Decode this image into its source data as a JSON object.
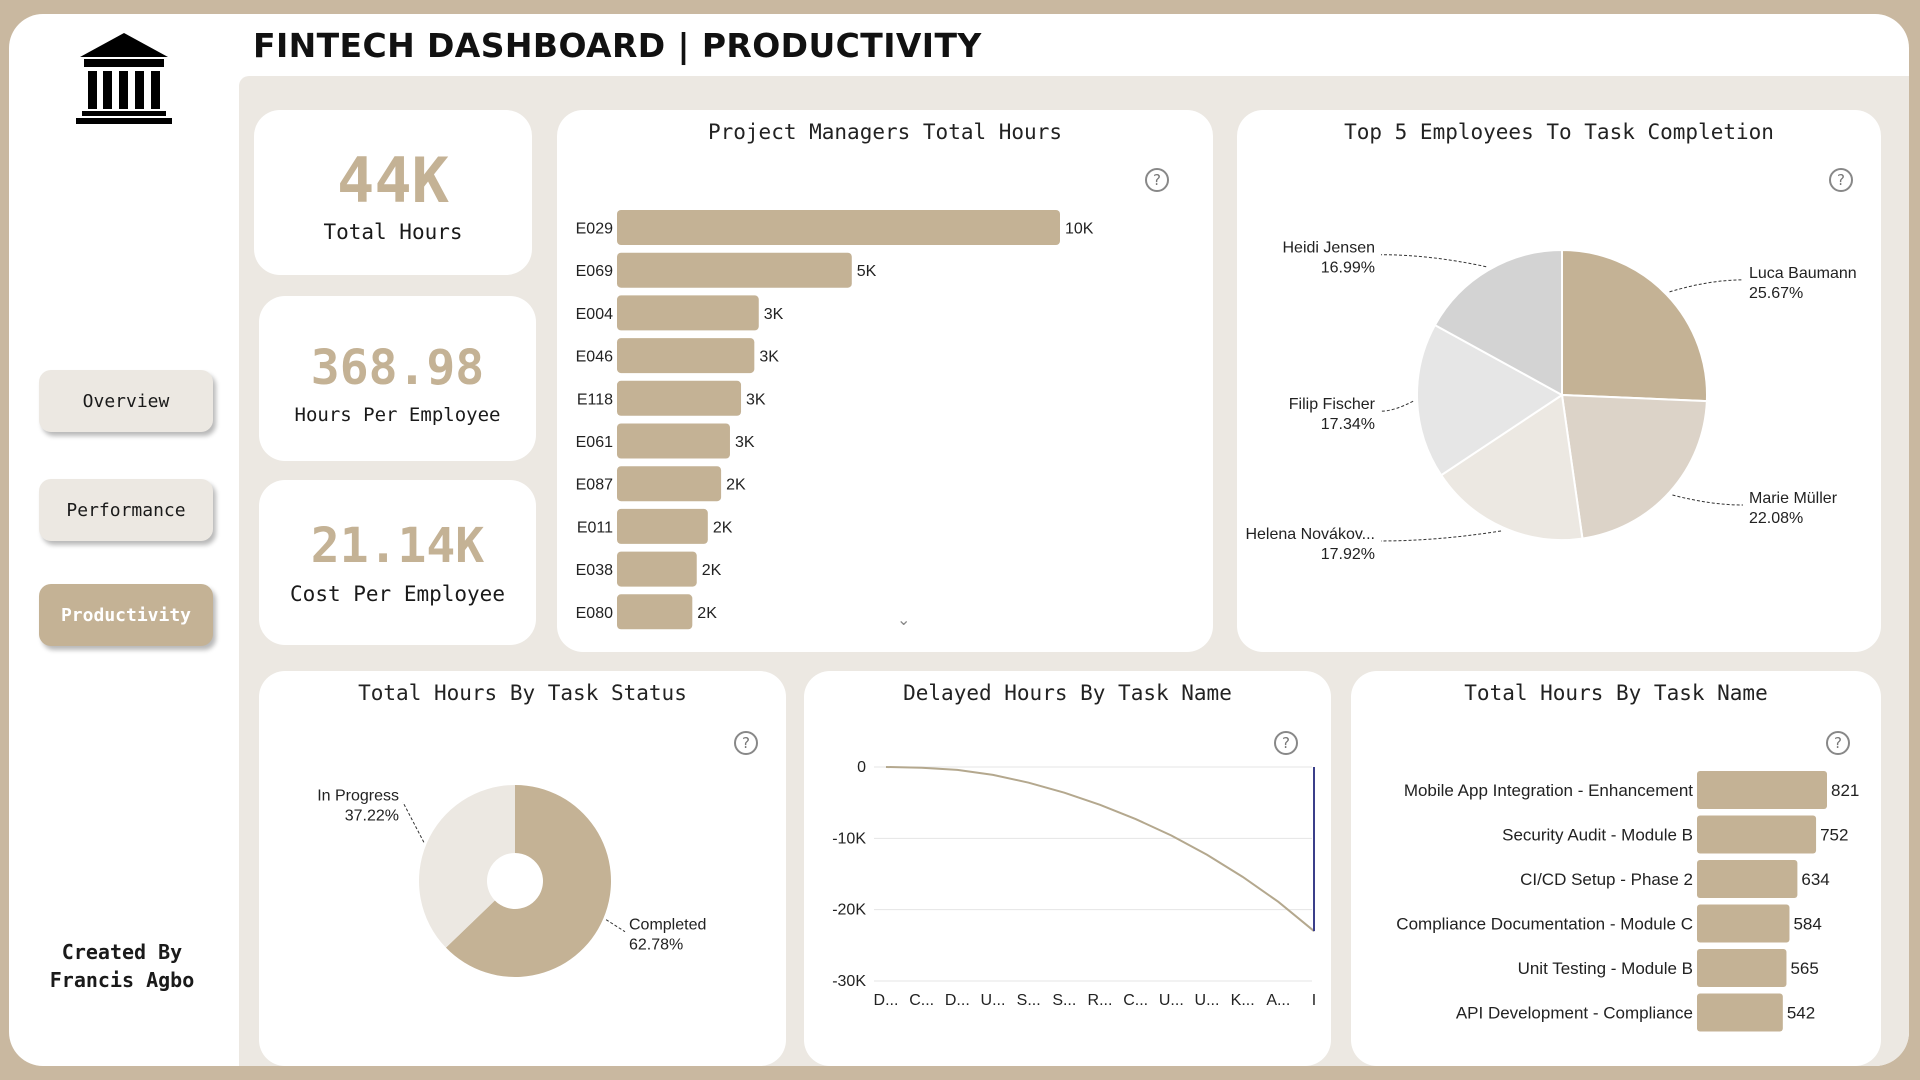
{
  "header": {
    "title": "FINTECH DASHBOARD | PRODUCTIVITY"
  },
  "sidebar": {
    "logo_icon": "bank-building-icon",
    "nav": [
      {
        "label": "Overview",
        "active": false
      },
      {
        "label": "Performance",
        "active": false
      },
      {
        "label": "Productivity",
        "active": true
      }
    ],
    "credit_line1": "Created By",
    "credit_line2": "Francis Agbo"
  },
  "kpis": {
    "total_hours": {
      "value": "44K",
      "label": "Total Hours"
    },
    "hours_per_employee": {
      "value": "368.98",
      "label": "Hours Per Employee"
    },
    "cost_per_employee": {
      "value": "21.14K",
      "label": "Cost Per Employee"
    }
  },
  "help_icon": "?",
  "scroll_icon": "⌄",
  "colors": {
    "accent": "#c4b295",
    "light": "#ece8e2",
    "gray": "#d3d3d3",
    "page": "#c9b8a0"
  },
  "chart_data": [
    {
      "id": "pm_hours",
      "type": "bar",
      "orientation": "horizontal",
      "title": "Project Managers Total Hours",
      "categories": [
        "E029",
        "E069",
        "E004",
        "E046",
        "E118",
        "E061",
        "E087",
        "E011",
        "E038",
        "E080"
      ],
      "values": [
        10000,
        5000,
        3000,
        3000,
        3000,
        3000,
        2000,
        2000,
        2000,
        2000
      ],
      "value_display": [
        10000,
        5300,
        3200,
        3100,
        2800,
        2550,
        2350,
        2050,
        1800,
        1700
      ],
      "labels": [
        "10K",
        "5K",
        "3K",
        "3K",
        "3K",
        "3K",
        "2K",
        "2K",
        "2K",
        "2K"
      ],
      "xlim": [
        0,
        10000
      ]
    },
    {
      "id": "top5",
      "type": "pie",
      "title": "Top 5 Employees To Task Completion",
      "series": [
        {
          "name": "Luca Baumann",
          "value": 25.67,
          "label": "25.67%",
          "color": "#c4b295"
        },
        {
          "name": "Marie Müller",
          "value": 22.08,
          "label": "22.08%",
          "color": "#dcd3c8"
        },
        {
          "name": "Helena Novákov...",
          "value": 17.92,
          "label": "17.92%",
          "color": "#ece8e2"
        },
        {
          "name": "Filip Fischer",
          "value": 17.34,
          "label": "17.34%",
          "color": "#e6e6e6"
        },
        {
          "name": "Heidi Jensen",
          "value": 16.99,
          "label": "16.99%",
          "color": "#d3d3d3"
        }
      ]
    },
    {
      "id": "status",
      "type": "pie",
      "subtype": "donut",
      "title": "Total Hours By Task Status",
      "series": [
        {
          "name": "Completed",
          "value": 62.78,
          "label": "62.78%",
          "color": "#c4b295"
        },
        {
          "name": "In Progress",
          "value": 37.22,
          "label": "37.22%",
          "color": "#ece8e2"
        }
      ]
    },
    {
      "id": "delayed",
      "type": "line",
      "title": "Delayed Hours By Task Name",
      "x": [
        "D...",
        "C...",
        "D...",
        "U...",
        "S...",
        "S...",
        "R...",
        "C...",
        "U...",
        "U...",
        "K...",
        "A...",
        "I"
      ],
      "values": [
        0,
        -100,
        -400,
        -1100,
        -2200,
        -3600,
        -5300,
        -7300,
        -9600,
        -12300,
        -15400,
        -18900,
        -23000
      ],
      "yticks": [
        0,
        -10000,
        -20000,
        -30000
      ],
      "ytick_labels": [
        "0",
        "-10K",
        "-20K",
        "-30K"
      ],
      "ylim": [
        -30000,
        0
      ],
      "grid": true
    },
    {
      "id": "task_hours",
      "type": "bar",
      "orientation": "horizontal",
      "title": "Total Hours By Task Name",
      "categories": [
        "Mobile App Integration - Enhancement",
        "Security Audit - Module B",
        "CI/CD Setup - Phase 2",
        "Compliance Documentation - Module C",
        "Unit Testing - Module B",
        "API Development - Compliance"
      ],
      "values": [
        821,
        752,
        634,
        584,
        565,
        542
      ],
      "labels": [
        "821",
        "752",
        "634",
        "584",
        "565",
        "542"
      ],
      "xlim": [
        0,
        821
      ]
    }
  ]
}
